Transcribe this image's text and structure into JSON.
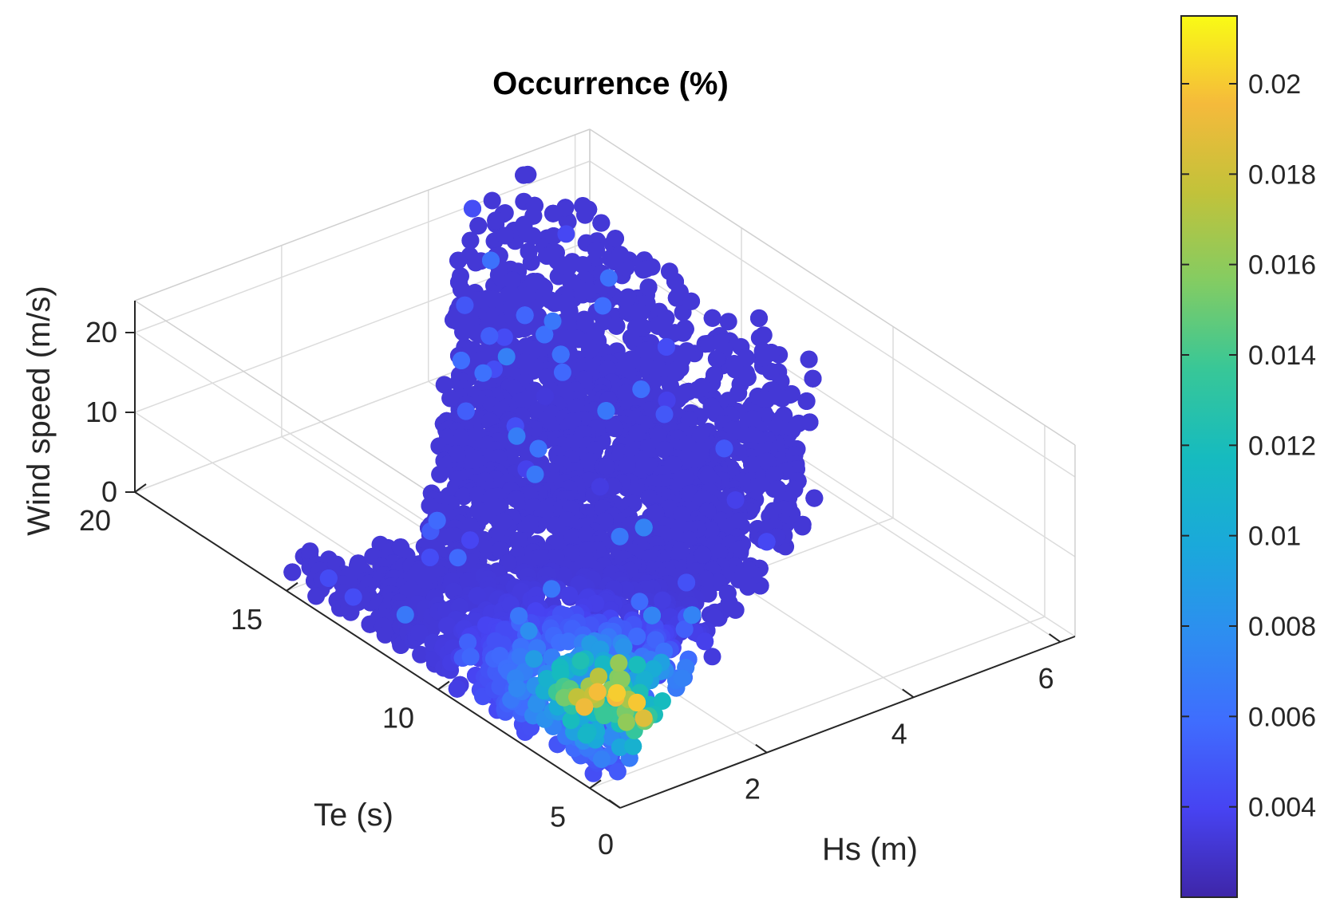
{
  "chart_data": {
    "type": "scatter",
    "title": "Occurrence (%)",
    "xlabel": "Hs (m)",
    "ylabel": "Te (s)",
    "zlabel": "Wind speed (m/s)",
    "x_ticks": [
      "0",
      "2",
      "4",
      "6"
    ],
    "y_ticks": [
      "5",
      "10",
      "15",
      "20"
    ],
    "z_ticks": [
      "0",
      "10",
      "20"
    ],
    "xlim": [
      0,
      6.2
    ],
    "ylim": [
      4,
      20
    ],
    "zlim": [
      0,
      24
    ],
    "colorbar": {
      "colormap": "parula",
      "range": [
        0.002,
        0.0215
      ],
      "ticks": [
        "0.004",
        "0.006",
        "0.008",
        "0.01",
        "0.012",
        "0.014",
        "0.016",
        "0.018",
        "0.02"
      ]
    },
    "grid": true,
    "point_cloud": {
      "count": 5200,
      "hs_range": [
        0,
        6
      ],
      "te_range": [
        4,
        20
      ],
      "wind_range": [
        0,
        23
      ],
      "peak_region": {
        "hs": 1.2,
        "te": 7,
        "wind": 2,
        "value": 0.0215
      }
    }
  }
}
